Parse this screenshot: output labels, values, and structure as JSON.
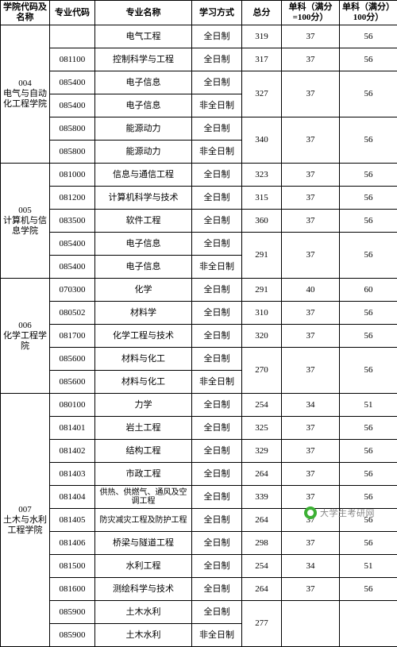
{
  "headers": {
    "school": "学院代码及名称",
    "major_code": "专业代码",
    "major_name": "专业名称",
    "mode": "学习方式",
    "total": "总分",
    "sub1": "单科（满分=100分）",
    "sub2": "单科（满分）100分）"
  },
  "schools": [
    {
      "label": "004\n电气与自动化工程学院",
      "rows": [
        {
          "code": "",
          "name": "电气工程",
          "mode": "全日制",
          "total": "319",
          "s1": "37",
          "s2": "56",
          "merge_total": 1,
          "merge_s": 1
        },
        {
          "code": "081100",
          "name": "控制科学与工程",
          "mode": "全日制",
          "total": "317",
          "s1": "37",
          "s2": "56",
          "merge_total": 1,
          "merge_s": 1
        },
        {
          "code": "085400",
          "name": "电子信息",
          "mode": "全日制",
          "total": "327",
          "s1": "37",
          "s2": "56",
          "merge_total": 2,
          "merge_s": 2
        },
        {
          "code": "085400",
          "name": "电子信息",
          "mode": "非全日制"
        },
        {
          "code": "085800",
          "name": "能源动力",
          "mode": "全日制",
          "total": "340",
          "s1": "37",
          "s2": "56",
          "merge_total": 2,
          "merge_s": 2
        },
        {
          "code": "085800",
          "name": "能源动力",
          "mode": "非全日制"
        }
      ]
    },
    {
      "label": "005\n计算机与信息学院",
      "rows": [
        {
          "code": "081000",
          "name": "信息与通信工程",
          "mode": "全日制",
          "total": "323",
          "s1": "37",
          "s2": "56",
          "merge_total": 1,
          "merge_s": 1
        },
        {
          "code": "081200",
          "name": "计算机科学与技术",
          "mode": "全日制",
          "total": "315",
          "s1": "37",
          "s2": "56",
          "merge_total": 1,
          "merge_s": 1
        },
        {
          "code": "083500",
          "name": "软件工程",
          "mode": "全日制",
          "total": "360",
          "s1": "37",
          "s2": "56",
          "merge_total": 1,
          "merge_s": 1
        },
        {
          "code": "085400",
          "name": "电子信息",
          "mode": "全日制",
          "total": "291",
          "s1": "37",
          "s2": "56",
          "merge_total": 2,
          "merge_s": 2
        },
        {
          "code": "085400",
          "name": "电子信息",
          "mode": "非全日制"
        }
      ]
    },
    {
      "label": "006\n化学工程学院",
      "rows": [
        {
          "code": "070300",
          "name": "化学",
          "mode": "全日制",
          "total": "291",
          "s1": "40",
          "s2": "60",
          "merge_total": 1,
          "merge_s": 1
        },
        {
          "code": "080502",
          "name": "材料学",
          "mode": "全日制",
          "total": "310",
          "s1": "37",
          "s2": "56",
          "merge_total": 1,
          "merge_s": 1
        },
        {
          "code": "081700",
          "name": "化学工程与技术",
          "mode": "全日制",
          "total": "320",
          "s1": "37",
          "s2": "56",
          "merge_total": 1,
          "merge_s": 1
        },
        {
          "code": "085600",
          "name": "材料与化工",
          "mode": "全日制",
          "total": "270",
          "s1": "37",
          "s2": "56",
          "merge_total": 2,
          "merge_s": 2
        },
        {
          "code": "085600",
          "name": "材料与化工",
          "mode": "非全日制"
        }
      ]
    },
    {
      "label": "007\n土木与水利工程学院",
      "rows": [
        {
          "code": "080100",
          "name": "力学",
          "mode": "全日制",
          "total": "254",
          "s1": "34",
          "s2": "51",
          "merge_total": 1,
          "merge_s": 1
        },
        {
          "code": "081401",
          "name": "岩土工程",
          "mode": "全日制",
          "total": "325",
          "s1": "37",
          "s2": "56",
          "merge_total": 1,
          "merge_s": 1
        },
        {
          "code": "081402",
          "name": "结构工程",
          "mode": "全日制",
          "total": "329",
          "s1": "37",
          "s2": "56",
          "merge_total": 1,
          "merge_s": 1
        },
        {
          "code": "081403",
          "name": "市政工程",
          "mode": "全日制",
          "total": "264",
          "s1": "37",
          "s2": "56",
          "merge_total": 1,
          "merge_s": 1
        },
        {
          "code": "081404",
          "name": "供热、供燃气、通风及空调工程",
          "mode": "全日制",
          "total": "339",
          "s1": "37",
          "s2": "56",
          "merge_total": 1,
          "merge_s": 1,
          "tiny": true
        },
        {
          "code": "081405",
          "name": "防灾减灾工程及防护工程",
          "mode": "全日制",
          "total": "264",
          "s1": "37",
          "s2": "56",
          "merge_total": 1,
          "merge_s": 1,
          "tiny": true
        },
        {
          "code": "081406",
          "name": "桥梁与隧道工程",
          "mode": "全日制",
          "total": "298",
          "s1": "37",
          "s2": "56",
          "merge_total": 1,
          "merge_s": 1
        },
        {
          "code": "081500",
          "name": "水利工程",
          "mode": "全日制",
          "total": "254",
          "s1": "34",
          "s2": "51",
          "merge_total": 1,
          "merge_s": 1
        },
        {
          "code": "081600",
          "name": "测绘科学与技术",
          "mode": "全日制",
          "total": "264",
          "s1": "37",
          "s2": "56",
          "merge_total": 1,
          "merge_s": 1
        },
        {
          "code": "085900",
          "name": "土木水利",
          "mode": "全日制",
          "total": "277",
          "s1": "",
          "s2": "",
          "merge_total": 2,
          "merge_s": 2
        },
        {
          "code": "085900",
          "name": "土木水利",
          "mode": "非全日制"
        }
      ]
    }
  ],
  "watermark": "大学生考研网"
}
